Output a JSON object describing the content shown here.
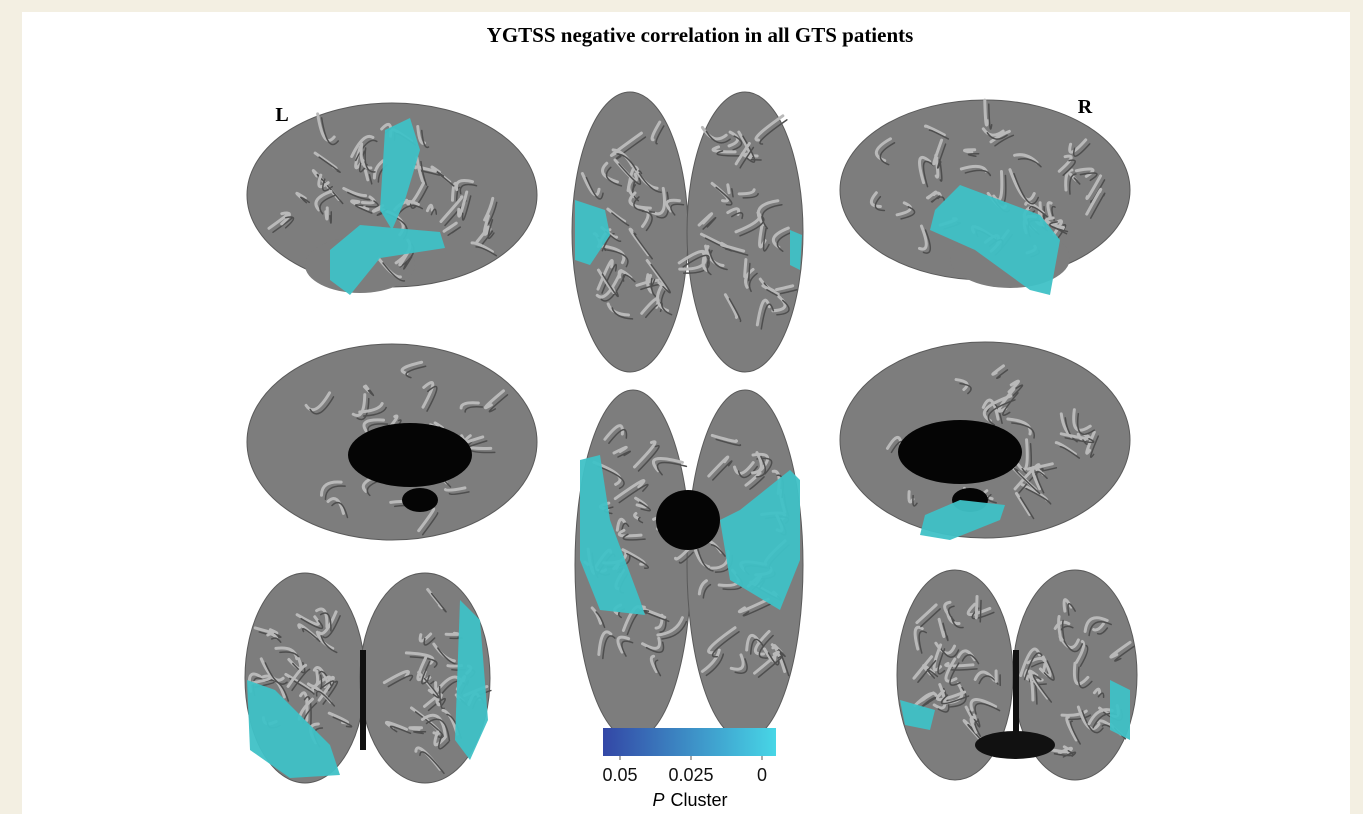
{
  "figure": {
    "title": "YGTSS negative correlation in all GTS patients",
    "left_label": "L",
    "right_label": "R",
    "colorbar": {
      "lim": [
        0.05,
        0
      ],
      "ticks": [
        0.05,
        0.025,
        0
      ],
      "colors": [
        "#3347a6",
        "#47d6e6"
      ],
      "label_symbol": "P",
      "label_text": "Cluster"
    }
  }
}
